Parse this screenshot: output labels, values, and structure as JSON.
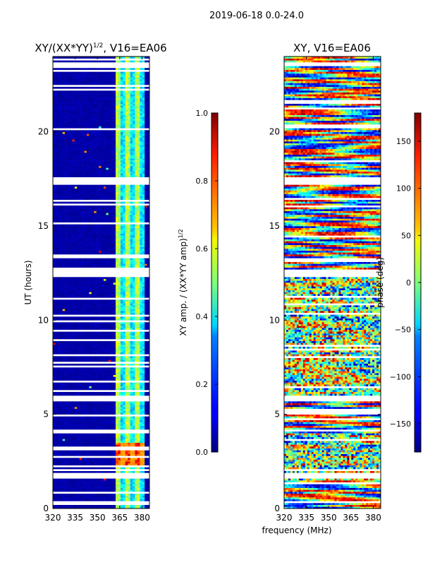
{
  "suptitle": "2019-06-18 0.0-24.0",
  "shared_xlabel": "frequency (MHz)",
  "chart_data": [
    {
      "type": "heatmap",
      "title_main": "XY/(XX*YY)",
      "title_sup": "1/2",
      "title_suffix": ", V16=EA06",
      "xlabel": "",
      "ylabel": "UT (hours)",
      "xlim": [
        320,
        385
      ],
      "ylim": [
        0,
        24
      ],
      "xticks": [
        320,
        335,
        350,
        365,
        380
      ],
      "yticks": [
        0,
        5,
        10,
        15,
        20
      ],
      "colorbar": {
        "label_main": "XY amp. / (XX*YY amp)",
        "label_sup": "1/2",
        "vmin": 0.0,
        "vmax": 1.0,
        "ticks": [
          "0.0",
          "0.2",
          "0.4",
          "0.6",
          "0.8",
          "1.0"
        ],
        "tick_values": [
          0.0,
          0.2,
          0.4,
          0.6,
          0.8,
          1.0
        ]
      },
      "active_band_MHz": [
        362,
        381
      ],
      "high_amp_band_hours": [
        2.3,
        3.5
      ],
      "gap_hours": [
        [
          1.6,
          1.9
        ],
        [
          2.0,
          2.1
        ],
        [
          5.7,
          6.0
        ],
        [
          12.3,
          12.7
        ],
        [
          17.2,
          17.6
        ],
        [
          23.5,
          23.7
        ]
      ]
    },
    {
      "type": "heatmap",
      "title_main": "XY",
      "title_sup": "",
      "title_suffix": ", V16=EA06",
      "xlabel": "frequency (MHz)",
      "ylabel": "",
      "xlim": [
        320,
        385
      ],
      "ylim": [
        0,
        24
      ],
      "xticks": [
        320,
        335,
        350,
        365,
        380
      ],
      "yticks": [
        0,
        5,
        10,
        15,
        20
      ],
      "colorbar": {
        "label_main": "phase (deg)",
        "label_sup": "",
        "vmin": -180,
        "vmax": 180,
        "ticks": [
          "−150",
          "−100",
          "−50",
          "0",
          "50",
          "100",
          "150"
        ],
        "tick_values": [
          -150,
          -100,
          -50,
          0,
          50,
          100,
          150
        ]
      },
      "gap_hours": [
        [
          1.6,
          1.9
        ],
        [
          2.0,
          2.1
        ],
        [
          5.7,
          6.0
        ],
        [
          12.3,
          12.7
        ],
        [
          17.2,
          17.6
        ],
        [
          23.5,
          23.7
        ]
      ]
    }
  ]
}
